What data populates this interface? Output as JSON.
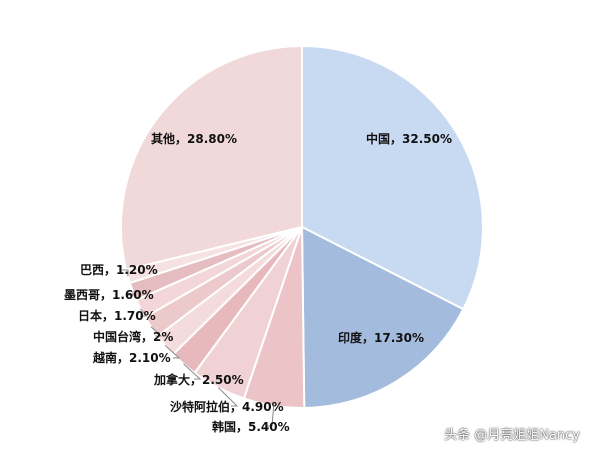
{
  "chart_data": {
    "type": "pie",
    "title": "",
    "slices": [
      {
        "label": "中国",
        "value": 32.5,
        "display": "中国，32.50%",
        "color": "#c8d9f2"
      },
      {
        "label": "印度",
        "value": 17.3,
        "display": "印度，17.30%",
        "color": "#a3bbdd"
      },
      {
        "label": "韩国",
        "value": 5.4,
        "display": "韩国，5.40%",
        "color": "#ecc4c8"
      },
      {
        "label": "沙特阿拉伯",
        "value": 4.9,
        "display": "沙特阿拉伯，4.90%",
        "color": "#f1d2d4"
      },
      {
        "label": "加拿大",
        "value": 2.5,
        "display": "加拿大，2.50%",
        "color": "#e7b9bd"
      },
      {
        "label": "越南",
        "value": 2.1,
        "display": "越南，2.10%",
        "color": "#f4dcdd"
      },
      {
        "label": "中国台湾",
        "value": 2.0,
        "display": "中国台湾，2%",
        "color": "#ecc9cb"
      },
      {
        "label": "日本",
        "value": 1.7,
        "display": "日本，1.70%",
        "color": "#f2d6d8"
      },
      {
        "label": "墨西哥",
        "value": 1.6,
        "display": "墨西哥，1.60%",
        "color": "#e5bcc0"
      },
      {
        "label": "巴西",
        "value": 1.2,
        "display": "巴西，1.20%",
        "color": "#f6e2e3"
      },
      {
        "label": "其他",
        "value": 28.8,
        "display": "其他，28.80%",
        "color": "#f1d9da"
      }
    ]
  },
  "watermark": "头条 @月亮姐姐Nancy"
}
